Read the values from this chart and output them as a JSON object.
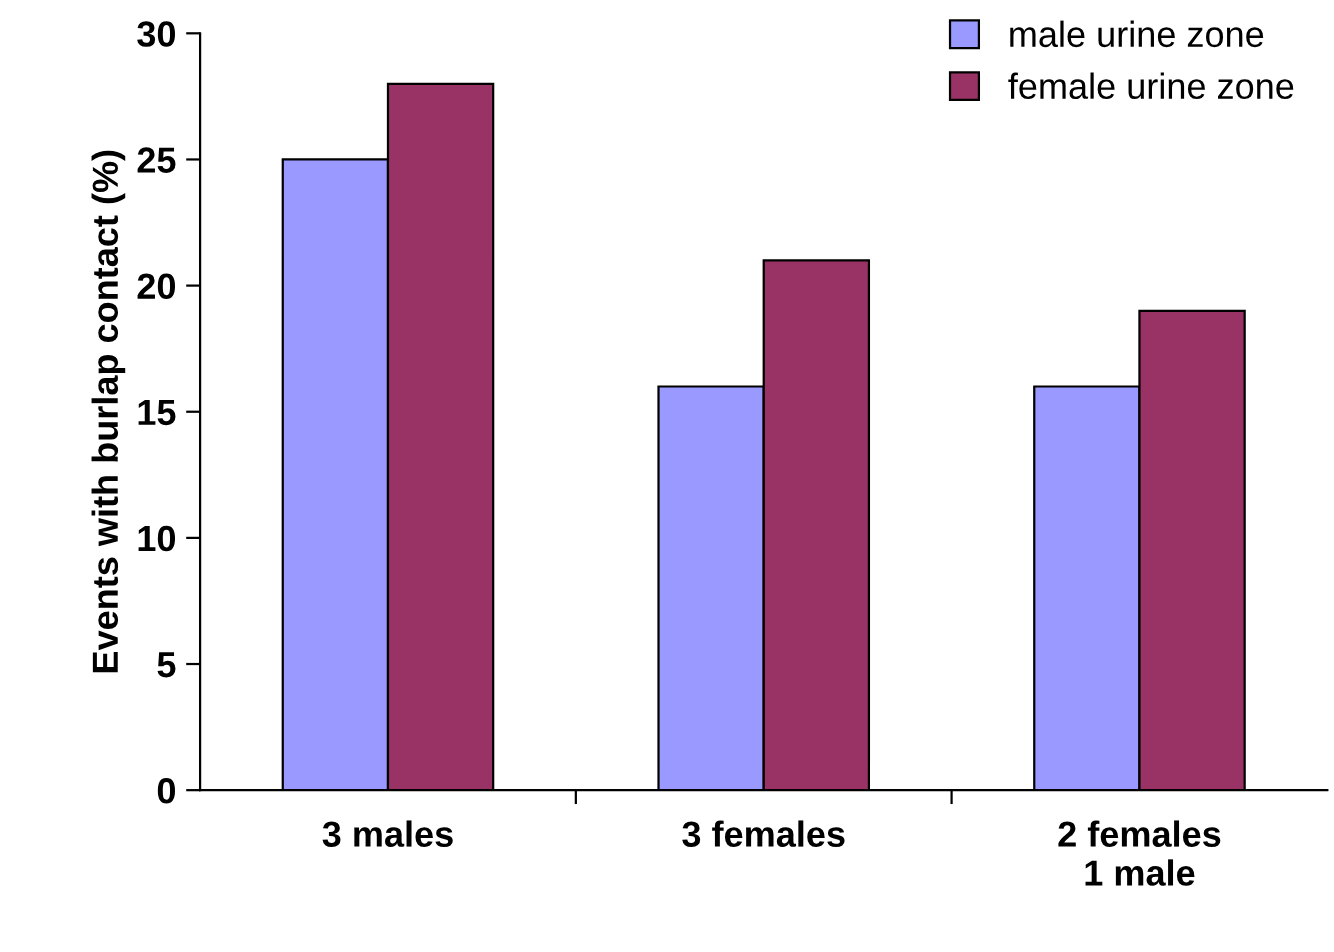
{
  "chart_data": {
    "type": "bar",
    "ylabel": "Events with burlap contact (%)",
    "categories": [
      "3 males",
      "3 females",
      "2 females\n1 male"
    ],
    "series": [
      {
        "name": "male urine zone",
        "color": "#9999ff",
        "values": [
          25,
          16,
          16
        ]
      },
      {
        "name": "female urine zone",
        "color": "#993366",
        "values": [
          28,
          21,
          19
        ]
      }
    ],
    "ylim": [
      0,
      30
    ],
    "yticks": [
      0,
      5,
      10,
      15,
      20,
      25,
      30
    ],
    "grid": false,
    "legend": "top right"
  }
}
